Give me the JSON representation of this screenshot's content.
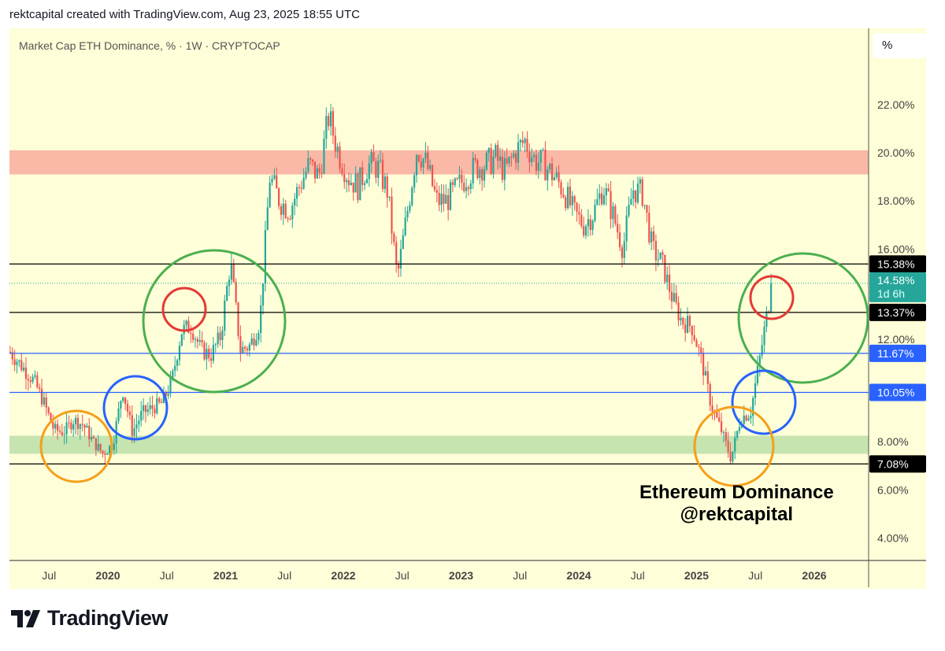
{
  "header": "rektcapital created with TradingView.com, Aug 23, 2025 18:55 UTC",
  "title": "Market Cap ETH Dominance, % · 1W · CRYPTOCAP",
  "unit_button": "%",
  "annotation": {
    "line1": "Ethereum Dominance",
    "line2": "@rektcapital"
  },
  "logo": "TradingView",
  "colors": {
    "background": "#fefed8",
    "up": "#26a69a",
    "down": "#ef5350",
    "resistance_zone": "#f9b9a6",
    "support_zone": "#c5e4b0",
    "blue": "#2962ff",
    "green_circle": "#4caf50",
    "red_circle": "#e53935",
    "orange_circle": "#f59f1a"
  },
  "chart_data": {
    "type": "candlestick",
    "timeframe": "1W",
    "ylim": [
      3,
      24
    ],
    "y_ticks": [
      "4.00%",
      "6.00%",
      "8.00%",
      "12.00%",
      "16.00%",
      "18.00%",
      "20.00%",
      "22.00%"
    ],
    "x_ticks": [
      "Jul",
      "2020",
      "Jul",
      "2021",
      "Jul",
      "2022",
      "Jul",
      "2023",
      "Jul",
      "2024",
      "Jul",
      "2025",
      "Jul",
      "2026"
    ],
    "approx_monthly_close": [
      [
        "2019-03",
        11.5
      ],
      [
        "2019-04",
        11.0
      ],
      [
        "2019-05",
        10.5
      ],
      [
        "2019-06",
        9.6
      ],
      [
        "2019-07",
        8.5
      ],
      [
        "2019-08",
        8.4
      ],
      [
        "2019-09",
        8.9
      ],
      [
        "2019-10",
        8.7
      ],
      [
        "2019-11",
        8.0
      ],
      [
        "2019-12",
        7.5
      ],
      [
        "2020-01",
        7.9
      ],
      [
        "2020-02",
        10.2
      ],
      [
        "2020-03",
        8.4
      ],
      [
        "2020-04",
        9.2
      ],
      [
        "2020-05",
        9.4
      ],
      [
        "2020-06",
        9.6
      ],
      [
        "2020-07",
        10.5
      ],
      [
        "2020-08",
        12.6
      ],
      [
        "2020-09",
        12.8
      ],
      [
        "2020-10",
        11.8
      ],
      [
        "2020-11",
        11.6
      ],
      [
        "2020-12",
        12.4
      ],
      [
        "2021-01",
        15.5
      ],
      [
        "2021-02",
        11.8
      ],
      [
        "2021-03",
        12.0
      ],
      [
        "2021-04",
        13.0
      ],
      [
        "2021-05",
        19.0
      ],
      [
        "2021-06",
        18.0
      ],
      [
        "2021-07",
        17.6
      ],
      [
        "2021-08",
        18.6
      ],
      [
        "2021-09",
        19.5
      ],
      [
        "2021-10",
        19.0
      ],
      [
        "2021-11",
        21.5
      ],
      [
        "2021-12",
        20.0
      ],
      [
        "2022-01",
        19.0
      ],
      [
        "2022-02",
        18.6
      ],
      [
        "2022-03",
        19.5
      ],
      [
        "2022-04",
        19.4
      ],
      [
        "2022-05",
        18.4
      ],
      [
        "2022-06",
        14.8
      ],
      [
        "2022-07",
        17.5
      ],
      [
        "2022-08",
        20.2
      ],
      [
        "2022-09",
        19.5
      ],
      [
        "2022-10",
        18.0
      ],
      [
        "2022-11",
        18.0
      ],
      [
        "2022-12",
        18.5
      ],
      [
        "2023-01",
        19.0
      ],
      [
        "2023-02",
        19.4
      ],
      [
        "2023-03",
        19.5
      ],
      [
        "2023-04",
        19.8
      ],
      [
        "2023-05",
        19.2
      ],
      [
        "2023-06",
        20.0
      ],
      [
        "2023-07",
        20.5
      ],
      [
        "2023-08",
        19.7
      ],
      [
        "2023-09",
        19.5
      ],
      [
        "2023-10",
        19.0
      ],
      [
        "2023-11",
        18.4
      ],
      [
        "2023-12",
        17.5
      ],
      [
        "2024-01",
        17.0
      ],
      [
        "2024-02",
        17.5
      ],
      [
        "2024-03",
        18.6
      ],
      [
        "2024-04",
        17.4
      ],
      [
        "2024-05",
        16.0
      ],
      [
        "2024-06",
        18.5
      ],
      [
        "2024-07",
        18.3
      ],
      [
        "2024-08",
        16.0
      ],
      [
        "2024-09",
        15.4
      ],
      [
        "2024-10",
        14.0
      ],
      [
        "2024-11",
        13.0
      ],
      [
        "2024-12",
        12.8
      ],
      [
        "2025-01",
        11.4
      ],
      [
        "2025-02",
        9.5
      ],
      [
        "2025-03",
        8.5
      ],
      [
        "2025-04",
        7.3
      ],
      [
        "2025-05",
        9.0
      ],
      [
        "2025-06",
        9.2
      ],
      [
        "2025-07",
        11.6
      ],
      [
        "2025-08",
        14.58
      ]
    ],
    "horizontal_levels": [
      {
        "value": 15.38,
        "label": "15.38%",
        "style": "black"
      },
      {
        "value": 13.37,
        "label": "13.37%",
        "style": "black"
      },
      {
        "value": 11.67,
        "label": "11.67%",
        "style": "blue"
      },
      {
        "value": 10.05,
        "label": "10.05%",
        "style": "blue"
      },
      {
        "value": 7.08,
        "label": "7.08%",
        "style": "black"
      }
    ],
    "current_price": {
      "value": 14.58,
      "label": "14.58%",
      "countdown": "1d 6h"
    },
    "zones": [
      {
        "from": 19.1,
        "to": 20.1,
        "kind": "resistance"
      },
      {
        "from": 7.5,
        "to": 8.25,
        "kind": "support"
      }
    ]
  }
}
